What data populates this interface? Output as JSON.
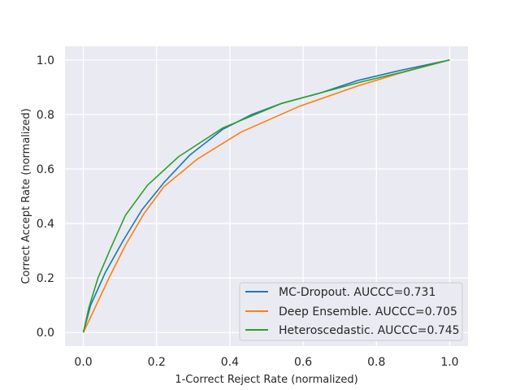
{
  "chart_data": {
    "type": "line",
    "title": "",
    "xlabel": "1-Correct Reject Rate (normalized)",
    "ylabel": "Correct Accept Rate (normalized)",
    "xlim": [
      -0.05,
      1.05
    ],
    "ylim": [
      -0.05,
      1.05
    ],
    "xticks": [
      0.0,
      0.2,
      0.4,
      0.6,
      0.8,
      1.0
    ],
    "yticks": [
      0.0,
      0.2,
      0.4,
      0.6,
      0.8,
      1.0
    ],
    "xtick_labels": [
      "0.0",
      "0.2",
      "0.4",
      "0.6",
      "0.8",
      "1.0"
    ],
    "ytick_labels": [
      "0.0",
      "0.2",
      "0.4",
      "0.6",
      "0.8",
      "1.0"
    ],
    "grid": true,
    "background": "#eaeaf2",
    "legend_position": "lower-right",
    "series": [
      {
        "name": "MC-Dropout. AUCCC=0.731",
        "color": "#1f77b4",
        "x": [
          0.0,
          0.02,
          0.06,
          0.11,
          0.16,
          0.22,
          0.29,
          0.38,
          0.46,
          0.54,
          0.65,
          0.75,
          0.86,
          1.0
        ],
        "y": [
          0.0,
          0.1,
          0.22,
          0.34,
          0.45,
          0.55,
          0.65,
          0.745,
          0.8,
          0.84,
          0.88,
          0.925,
          0.96,
          1.0
        ]
      },
      {
        "name": "Deep Ensemble. AUCCC=0.705",
        "color": "#ff7f0e",
        "x": [
          0.0,
          0.03,
          0.07,
          0.115,
          0.165,
          0.22,
          0.31,
          0.43,
          0.59,
          0.75,
          0.86,
          1.0
        ],
        "y": [
          0.0,
          0.085,
          0.2,
          0.32,
          0.435,
          0.535,
          0.635,
          0.735,
          0.83,
          0.905,
          0.95,
          1.0
        ]
      },
      {
        "name": "Heteroscedastic. AUCCC=0.745",
        "color": "#2ca02c",
        "x": [
          0.0,
          0.015,
          0.04,
          0.075,
          0.115,
          0.175,
          0.26,
          0.38,
          0.54,
          0.65,
          0.76,
          0.87,
          1.0
        ],
        "y": [
          0.0,
          0.09,
          0.2,
          0.31,
          0.43,
          0.54,
          0.645,
          0.75,
          0.84,
          0.88,
          0.92,
          0.955,
          1.0
        ]
      }
    ]
  }
}
